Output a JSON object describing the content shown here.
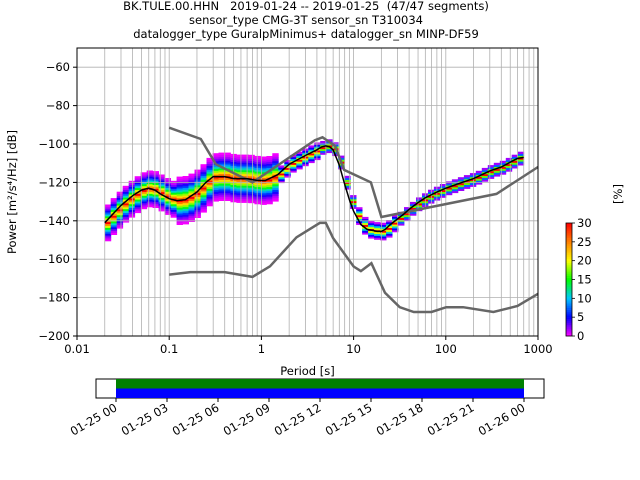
{
  "titles": {
    "line1": "BK.TULE.00.HHN   2019-01-24 -- 2019-01-25  (47/47 segments)",
    "line2": "sensor_type CMG-3T sensor_sn T310034",
    "line3": "datalogger_type GuralpMinimus+ datalogger_sn MINP-DF59"
  },
  "chart_data": [
    {
      "type": "heatmap",
      "xlabel": "Period [s]",
      "ylabel": "Power [m²/s⁴/Hz] [dB]",
      "x_scale": "log",
      "xlim": [
        0.01,
        1000
      ],
      "ylim": [
        -200,
        -50
      ],
      "x_ticks": [
        "0.01",
        "0.1",
        "1",
        "10",
        "100",
        "1000"
      ],
      "y_ticks": [
        -200,
        -180,
        -160,
        -140,
        -120,
        -100,
        -80,
        -60
      ],
      "grid": true,
      "colorbar": {
        "label": "[%]",
        "ticks": [
          0,
          5,
          10,
          15,
          20,
          25,
          30
        ],
        "range": [
          0,
          30
        ],
        "colors": [
          "#ff00ff",
          "#0000ff",
          "#00c8ff",
          "#00ff00",
          "#ffff00",
          "#ff8000",
          "#ff0000"
        ]
      },
      "noise_models": [
        {
          "name": "NHNM",
          "x": [
            0.1,
            0.22,
            0.32,
            0.8,
            3.8,
            4.6,
            6.3,
            7.9,
            15.4,
            20,
            354.8,
            1000
          ],
          "y": [
            -91.5,
            -97.4,
            -110.5,
            -120,
            -98,
            -96.5,
            -101,
            -113.5,
            -120,
            -138,
            -126,
            -112
          ]
        },
        {
          "name": "NLNM",
          "x": [
            0.1,
            0.17,
            0.4,
            0.8,
            1.24,
            2.4,
            4.3,
            5,
            6,
            10,
            12,
            15.6,
            21.9,
            31.6,
            45,
            70,
            101,
            154,
            328,
            600,
            1000
          ],
          "y": [
            -168,
            -166.7,
            -166.7,
            -169.2,
            -163.7,
            -148.6,
            -141.1,
            -141.1,
            -149,
            -163.8,
            -166.2,
            -162.1,
            -177.5,
            -185,
            -187.5,
            -187.5,
            -185,
            -185,
            -187.5,
            -184.4,
            -178
          ]
        }
      ],
      "mode_curve": {
        "x": [
          0.02,
          0.03,
          0.04,
          0.05,
          0.06,
          0.07,
          0.08,
          0.1,
          0.12,
          0.15,
          0.2,
          0.25,
          0.3,
          0.4,
          0.5,
          0.7,
          0.9,
          1.1,
          1.5,
          2,
          3,
          4,
          4.5,
          5,
          5.5,
          6,
          7,
          8,
          9,
          10,
          12,
          14,
          16,
          18,
          20,
          22,
          25,
          30,
          35,
          40,
          50,
          60,
          80,
          100,
          150,
          200,
          300,
          400,
          500,
          600,
          700
        ],
        "y": [
          -141,
          -132,
          -127,
          -124,
          -123,
          -124,
          -126,
          -128.5,
          -129.5,
          -129,
          -125,
          -120,
          -117,
          -117,
          -118,
          -118,
          -119,
          -119,
          -116,
          -110.5,
          -106,
          -103,
          -101.5,
          -101,
          -101.5,
          -103,
          -111,
          -121,
          -129,
          -135,
          -142,
          -144.5,
          -145,
          -145.5,
          -145.5,
          -144.5,
          -142,
          -139,
          -136.5,
          -134,
          -130.5,
          -128,
          -125,
          -123,
          -120,
          -118,
          -114,
          -112,
          -109.5,
          -107.5,
          -107
        ]
      },
      "percent_ticks": [
        0,
        5,
        10,
        15,
        20,
        25,
        30
      ]
    },
    {
      "type": "timeline",
      "x_ticks": [
        "01-25 00",
        "01-25 03",
        "01-25 06",
        "01-25 09",
        "01-25 12",
        "01-25 15",
        "01-25 18",
        "01-25 21",
        "01-26 00"
      ],
      "bars": [
        {
          "color": "#008000",
          "start": "01-25 00",
          "end": "01-26 00"
        },
        {
          "color": "#0000ff",
          "start": "01-25 00",
          "end": "01-26 00"
        }
      ]
    }
  ]
}
